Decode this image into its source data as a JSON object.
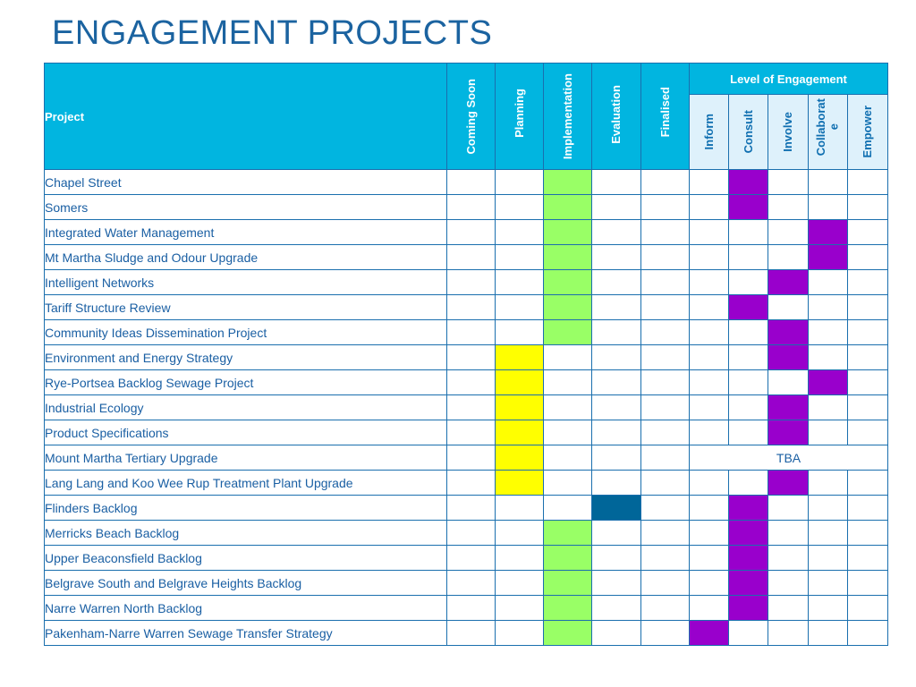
{
  "title": "ENGAGEMENT PROJECTS",
  "headers": {
    "project": "Project",
    "stages": [
      "Coming Soon",
      "Planning",
      "Implementation",
      "Evaluation",
      "Finalised"
    ],
    "level_group": "Level of Engagement",
    "levels": [
      "Inform",
      "Consult",
      "Involve",
      "Collaborate",
      "Empower"
    ],
    "collaborate_line1": "Collaborat",
    "collaborate_line2": "e"
  },
  "colors": {
    "title": "#1b63a0",
    "header_bg": "#01b5e0",
    "level_header_bg": "#def1fb",
    "border": "#1a6fae",
    "implementation": "#99ff66",
    "planning": "#ffff00",
    "evaluation": "#006699",
    "engagement": "#9900cc"
  },
  "rows": [
    {
      "project": "Chapel Street",
      "stage": "Implementation",
      "level": "Consult"
    },
    {
      "project": "Somers",
      "stage": "Implementation",
      "level": "Consult"
    },
    {
      "project": "Integrated Water Management",
      "stage": "Implementation",
      "level": "Collaborate"
    },
    {
      "project": "Mt Martha Sludge and Odour Upgrade",
      "stage": "Implementation",
      "level": "Collaborate"
    },
    {
      "project": "Intelligent Networks",
      "stage": "Implementation",
      "level": "Involve"
    },
    {
      "project": "Tariff Structure Review",
      "stage": "Implementation",
      "level": "Consult"
    },
    {
      "project": "Community Ideas Dissemination Project",
      "stage": "Implementation",
      "level": "Involve"
    },
    {
      "project": "Environment and Energy Strategy",
      "stage": "Planning",
      "level": "Involve"
    },
    {
      "project": "Rye-Portsea Backlog Sewage Project",
      "stage": "Planning",
      "level": "Collaborate"
    },
    {
      "project": "Industrial Ecology",
      "stage": "Planning",
      "level": "Involve"
    },
    {
      "project": "Product Specifications",
      "stage": "Planning",
      "level": "Involve"
    },
    {
      "project": "Mount Martha Tertiary Upgrade",
      "stage": "Planning",
      "level": "TBA"
    },
    {
      "project": "Lang Lang and Koo Wee Rup Treatment Plant Upgrade",
      "stage": "Planning",
      "level": "Involve"
    },
    {
      "project": "Flinders Backlog",
      "stage": "Evaluation",
      "level": "Consult"
    },
    {
      "project": "Merricks Beach Backlog",
      "stage": "Implementation",
      "level": "Consult"
    },
    {
      "project": "Upper Beaconsfield Backlog",
      "stage": "Implementation",
      "level": "Consult"
    },
    {
      "project": "Belgrave South  and Belgrave Heights Backlog",
      "stage": "Implementation",
      "level": "Consult"
    },
    {
      "project": "Narre Warren North Backlog",
      "stage": "Implementation",
      "level": "Consult"
    },
    {
      "project": "Pakenham-Narre Warren Sewage Transfer Strategy",
      "stage": "Implementation",
      "level": "Inform"
    }
  ]
}
